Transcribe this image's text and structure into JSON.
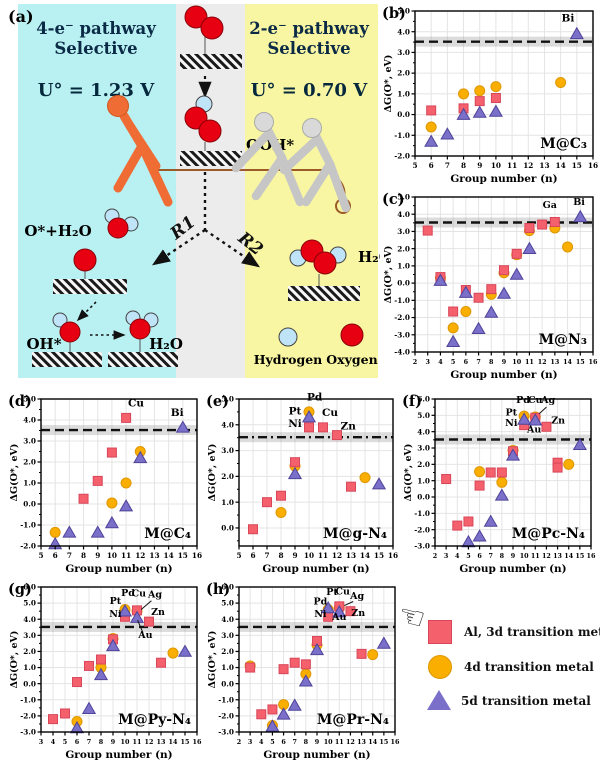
{
  "panel_a": {
    "label": "(a)",
    "left_title_line1": "4-e⁻ pathway",
    "left_title_line2": "Selective",
    "left_potential": "U° = 1.23 V",
    "right_title_line1": "2-e⁻ pathway",
    "right_title_line2": "Selective",
    "right_potential": "U° = 0.70 V",
    "ooh_label": "OOH*",
    "r1_label": "R1",
    "r2_label": "R2",
    "o_h2o_label": "O*+H₂O",
    "oh_label": "OH*",
    "h2o_label": "H₂O",
    "h2o2_label": "H₂O₂",
    "hydrogen_label": "Hydrogen",
    "oxygen_label": "Oxygen"
  },
  "colors": {
    "red": "#f4606c",
    "red_stroke": "#d8475a",
    "orange": "#f9ae00",
    "orange_stroke": "#de9700",
    "purple": "#7a70c9",
    "purple_stroke": "#4f4399",
    "threshold": "#111111",
    "cyan_bg": "#b9f0f2",
    "yellow_bg": "#f8f6a2",
    "gray_bg": "#ececec",
    "oxygen_atom": "#e60012",
    "hydrogen_atom": "#bfe3f7",
    "rope": "#9c5a28"
  },
  "legend": {
    "items": [
      {
        "marker": "square",
        "label": "Al, 3d transition metal",
        "color": "#f4606c"
      },
      {
        "marker": "circle",
        "label": "4d transition metal",
        "color": "#f9ae00"
      },
      {
        "marker": "triangle",
        "label": "5d transition metal",
        "color": "#7a70c9"
      }
    ]
  },
  "chart_data": [
    {
      "id": "b",
      "letter": "(b)",
      "tag": "M@C₃",
      "type": "scatter",
      "xlabel": "Group number (n)",
      "ylabel": "ΔG(O*, eV)",
      "xlim": [
        5,
        16
      ],
      "ylim": [
        -2,
        5
      ],
      "grid": true,
      "threshold": {
        "value": 3.52,
        "style": "dashed"
      },
      "series": [
        {
          "name": "Al, 3d transition metal",
          "marker": "square",
          "points": [
            [
              6,
              0.2
            ],
            [
              8,
              0.3
            ],
            [
              9,
              0.65
            ],
            [
              10,
              0.8
            ]
          ]
        },
        {
          "name": "4d transition metal",
          "marker": "circle",
          "points": [
            [
              6,
              -0.6
            ],
            [
              8,
              1.0
            ],
            [
              9,
              1.15
            ],
            [
              10,
              1.35
            ],
            [
              14,
              1.55
            ]
          ]
        },
        {
          "name": "5d transition metal",
          "marker": "triangle",
          "points": [
            [
              6,
              -1.3
            ],
            [
              7,
              -0.95
            ],
            [
              8,
              0.0
            ],
            [
              9,
              0.1
            ],
            [
              10,
              0.15
            ],
            [
              15,
              3.9
            ]
          ]
        }
      ],
      "annotations": [
        {
          "t": "Bi",
          "x": 14.45,
          "y": 4.5
        }
      ]
    },
    {
      "id": "c",
      "letter": "(c)",
      "tag": "M@N₃",
      "type": "scatter",
      "xlabel": "Group number (n)",
      "ylabel": "ΔG(O*, eV)",
      "xlim": [
        2,
        16
      ],
      "ylim": [
        -4,
        5
      ],
      "grid": true,
      "threshold": {
        "value": 3.52,
        "style": "dashed"
      },
      "series": [
        {
          "name": "Al, 3d transition metal",
          "marker": "square",
          "points": [
            [
              3,
              3.05
            ],
            [
              4,
              0.35
            ],
            [
              5,
              -1.65
            ],
            [
              6,
              -0.4
            ],
            [
              7,
              -0.85
            ],
            [
              8,
              -0.35
            ],
            [
              9,
              0.75
            ],
            [
              10,
              1.7
            ],
            [
              11,
              3.2
            ],
            [
              12,
              3.4
            ],
            [
              13,
              3.55
            ]
          ]
        },
        {
          "name": "4d transition metal",
          "marker": "circle",
          "points": [
            [
              4,
              0.3
            ],
            [
              5,
              -2.6
            ],
            [
              6,
              -1.65
            ],
            [
              8,
              -0.65
            ],
            [
              9,
              0.6
            ],
            [
              10,
              1.65
            ],
            [
              11,
              3.05
            ],
            [
              13,
              3.2
            ],
            [
              14,
              2.1
            ]
          ]
        },
        {
          "name": "5d transition metal",
          "marker": "triangle",
          "points": [
            [
              4,
              0.15
            ],
            [
              5,
              -3.4
            ],
            [
              6,
              -0.55
            ],
            [
              7,
              -2.65
            ],
            [
              8,
              -1.7
            ],
            [
              9,
              -0.6
            ],
            [
              10,
              0.5
            ],
            [
              11,
              2.0
            ],
            [
              15,
              3.85
            ]
          ]
        }
      ],
      "annotations": [
        {
          "t": "Ga",
          "x": 12.6,
          "y": 4.35
        },
        {
          "t": "Bi",
          "x": 14.9,
          "y": 4.55
        }
      ]
    },
    {
      "id": "d",
      "letter": "(d)",
      "tag": "M@C₄",
      "type": "scatter",
      "xlabel": "Group number (n)",
      "ylabel": "ΔG(O*, eV)",
      "xlim": [
        5,
        16
      ],
      "ylim": [
        -2,
        5
      ],
      "grid": true,
      "threshold": {
        "value": 3.52,
        "style": "dashed"
      },
      "series": [
        {
          "name": "Al, 3d transition metal",
          "marker": "square",
          "points": [
            [
              8,
              0.25
            ],
            [
              9,
              1.1
            ],
            [
              10,
              2.45
            ],
            [
              11,
              4.1
            ]
          ]
        },
        {
          "name": "4d transition metal",
          "marker": "circle",
          "points": [
            [
              6,
              -1.35
            ],
            [
              10,
              0.05
            ],
            [
              11,
              1.0
            ],
            [
              12,
              2.5
            ]
          ]
        },
        {
          "name": "5d transition metal",
          "marker": "triangle",
          "points": [
            [
              6,
              -1.9
            ],
            [
              7,
              -1.35
            ],
            [
              9,
              -1.35
            ],
            [
              10,
              -0.9
            ],
            [
              11,
              -0.1
            ],
            [
              12,
              2.2
            ],
            [
              15,
              3.65
            ]
          ]
        }
      ],
      "annotations": [
        {
          "t": "Cu",
          "x": 11.7,
          "y": 4.65
        },
        {
          "t": "Bi",
          "x": 14.6,
          "y": 4.2
        }
      ]
    },
    {
      "id": "e",
      "letter": "(e)",
      "tag": "M@g-N₄",
      "type": "scatter",
      "xlabel": "Group number (n)",
      "ylabel": "ΔG(O*, eV)",
      "xlim": [
        5,
        16
      ],
      "ylim": [
        -0.7,
        5
      ],
      "grid": true,
      "threshold": {
        "value": 3.52,
        "style": "dashdot"
      },
      "series": [
        {
          "name": "Al, 3d transition metal",
          "marker": "square",
          "points": [
            [
              6,
              -0.05
            ],
            [
              7,
              1.0
            ],
            [
              8,
              1.25
            ],
            [
              9,
              2.55
            ],
            [
              10,
              3.9
            ],
            [
              11,
              3.9
            ],
            [
              12,
              3.6
            ],
            [
              13,
              1.6
            ]
          ]
        },
        {
          "name": "4d transition metal",
          "marker": "circle",
          "points": [
            [
              8,
              0.6
            ],
            [
              9,
              2.4
            ],
            [
              10,
              4.5
            ],
            [
              14,
              1.95
            ]
          ]
        },
        {
          "name": "5d transition metal",
          "marker": "triangle",
          "points": [
            [
              9,
              2.1
            ],
            [
              10,
              4.3
            ],
            [
              15,
              1.7
            ]
          ]
        }
      ],
      "annotations": [
        {
          "t": "Pd",
          "x": 10.4,
          "y": 4.95
        },
        {
          "t": "Pt",
          "x": 9.0,
          "y": 4.4
        },
        {
          "t": "Cu",
          "x": 11.5,
          "y": 4.35
        },
        {
          "t": "Ni",
          "x": 9.0,
          "y": 3.92
        },
        {
          "t": "Zn",
          "x": 12.8,
          "y": 3.82
        }
      ]
    },
    {
      "id": "f",
      "letter": "(f)",
      "tag": "M@Pc-N₄",
      "type": "scatter",
      "xlabel": "Group number (n)",
      "ylabel": "ΔG(O*, eV)",
      "xlim": [
        2,
        16
      ],
      "ylim": [
        -3,
        6
      ],
      "grid": true,
      "threshold": {
        "value": 3.52,
        "style": "dashed"
      },
      "series": [
        {
          "name": "Al, 3d transition metal",
          "marker": "square",
          "points": [
            [
              3,
              1.1
            ],
            [
              4,
              -1.75
            ],
            [
              5,
              -1.5
            ],
            [
              6,
              0.7
            ],
            [
              7,
              1.5
            ],
            [
              8,
              1.5
            ],
            [
              9,
              2.8
            ],
            [
              10,
              4.4
            ],
            [
              11,
              4.85
            ],
            [
              12,
              4.3
            ],
            [
              13,
              2.1
            ],
            [
              13,
              1.8
            ]
          ]
        },
        {
          "name": "4d transition metal",
          "marker": "circle",
          "points": [
            [
              6,
              1.55
            ],
            [
              8,
              0.9
            ],
            [
              9,
              2.85
            ],
            [
              10,
              4.95
            ],
            [
              11,
              4.9
            ],
            [
              14,
              2.0
            ]
          ]
        },
        {
          "name": "5d transition metal",
          "marker": "triangle",
          "points": [
            [
              5,
              -2.75
            ],
            [
              6,
              -2.4
            ],
            [
              7,
              -1.5
            ],
            [
              8,
              0.1
            ],
            [
              9,
              2.55
            ],
            [
              10,
              4.75
            ],
            [
              11,
              4.7
            ],
            [
              15,
              3.2
            ]
          ]
        }
      ],
      "annotations": [
        {
          "t": "Pd",
          "x": 9.9,
          "y": 5.75
        },
        {
          "t": "Cu",
          "x": 11.0,
          "y": 5.75
        },
        {
          "t": "Ag",
          "x": 12.15,
          "y": 5.75,
          "line": [
            12.0,
            5.5,
            11.35,
            5.1
          ]
        },
        {
          "t": "Pt",
          "x": 8.85,
          "y": 5.0
        },
        {
          "t": "Ni",
          "x": 8.85,
          "y": 4.35
        },
        {
          "t": "Au",
          "x": 10.9,
          "y": 3.95
        },
        {
          "t": "Zn",
          "x": 13.05,
          "y": 4.5
        }
      ]
    },
    {
      "id": "g",
      "letter": "(g)",
      "tag": "M@Py-N₄",
      "type": "scatter",
      "xlabel": "Group number (n)",
      "ylabel": "ΔG(O*, eV)",
      "xlim": [
        3,
        16
      ],
      "ylim": [
        -3,
        6
      ],
      "grid": true,
      "threshold": {
        "value": 3.52,
        "style": "dashed"
      },
      "series": [
        {
          "name": "Al, 3d transition metal",
          "marker": "square",
          "points": [
            [
              4,
              -2.2
            ],
            [
              5,
              -1.85
            ],
            [
              6,
              0.1
            ],
            [
              7,
              1.1
            ],
            [
              8,
              1.5
            ],
            [
              9,
              2.75
            ],
            [
              10,
              4.15
            ],
            [
              11,
              4.55
            ],
            [
              12,
              3.85
            ],
            [
              13,
              1.3
            ]
          ]
        },
        {
          "name": "4d transition metal",
          "marker": "circle",
          "points": [
            [
              6,
              -2.35
            ],
            [
              8,
              1.0
            ],
            [
              9,
              2.8
            ],
            [
              10,
              4.6
            ],
            [
              11,
              4.5
            ],
            [
              14,
              1.9
            ]
          ]
        },
        {
          "name": "5d transition metal",
          "marker": "triangle",
          "points": [
            [
              6,
              -2.75
            ],
            [
              7,
              -1.55
            ],
            [
              8,
              0.55
            ],
            [
              9,
              2.35
            ],
            [
              10,
              4.5
            ],
            [
              11,
              4.1
            ],
            [
              15,
              2.0
            ]
          ]
        }
      ],
      "annotations": [
        {
          "t": "Pt",
          "x": 9.2,
          "y": 4.95
        },
        {
          "t": "Pd",
          "x": 10.25,
          "y": 5.45
        },
        {
          "t": "Cu",
          "x": 11.15,
          "y": 5.4
        },
        {
          "t": "Ag",
          "x": 12.5,
          "y": 5.35,
          "line": [
            12.2,
            5.15,
            11.35,
            4.6
          ]
        },
        {
          "t": "Ni",
          "x": 9.2,
          "y": 4.15
        },
        {
          "t": "Zn",
          "x": 12.75,
          "y": 4.25
        },
        {
          "t": "Au",
          "x": 11.7,
          "y": 2.85,
          "line": [
            11.5,
            3.15,
            11.05,
            3.95
          ]
        }
      ]
    },
    {
      "id": "h",
      "letter": "(h)",
      "tag": "M@Pr-N₄",
      "type": "scatter",
      "xlabel": "Group number (n)",
      "ylabel": "ΔG(O*, eV)",
      "xlim": [
        2,
        16
      ],
      "ylim": [
        -3,
        6
      ],
      "grid": true,
      "threshold": {
        "value": 3.52,
        "style": "dashed"
      },
      "series": [
        {
          "name": "Al, 3d transition metal",
          "marker": "square",
          "points": [
            [
              3,
              1.0
            ],
            [
              4,
              -1.9
            ],
            [
              5,
              -1.6
            ],
            [
              6,
              0.9
            ],
            [
              7,
              1.3
            ],
            [
              8,
              1.2
            ],
            [
              9,
              2.65
            ],
            [
              10,
              4.15
            ],
            [
              11,
              4.8
            ],
            [
              12,
              4.5
            ],
            [
              13,
              1.85
            ]
          ]
        },
        {
          "name": "4d transition metal",
          "marker": "circle",
          "points": [
            [
              3,
              1.1
            ],
            [
              5,
              -2.6
            ],
            [
              6,
              -1.3
            ],
            [
              8,
              0.6
            ],
            [
              9,
              2.4
            ],
            [
              10,
              4.6
            ],
            [
              11,
              4.7
            ],
            [
              14,
              1.8
            ]
          ]
        },
        {
          "name": "5d transition metal",
          "marker": "triangle",
          "points": [
            [
              5,
              -2.65
            ],
            [
              6,
              -1.9
            ],
            [
              7,
              -1.35
            ],
            [
              8,
              0.15
            ],
            [
              9,
              2.1
            ],
            [
              10,
              4.7
            ],
            [
              11,
              4.45
            ],
            [
              15,
              2.5
            ]
          ]
        }
      ],
      "annotations": [
        {
          "t": "Pd",
          "x": 9.3,
          "y": 4.9
        },
        {
          "t": "Pt",
          "x": 10.35,
          "y": 5.5
        },
        {
          "t": "Cu",
          "x": 11.3,
          "y": 5.55
        },
        {
          "t": "Ag",
          "x": 12.6,
          "y": 5.25,
          "line": [
            12.25,
            5.1,
            11.45,
            4.85
          ]
        },
        {
          "t": "Ni",
          "x": 9.3,
          "y": 4.15
        },
        {
          "t": "Au",
          "x": 11.0,
          "y": 3.95
        },
        {
          "t": "Zn",
          "x": 12.7,
          "y": 4.2
        }
      ]
    }
  ]
}
